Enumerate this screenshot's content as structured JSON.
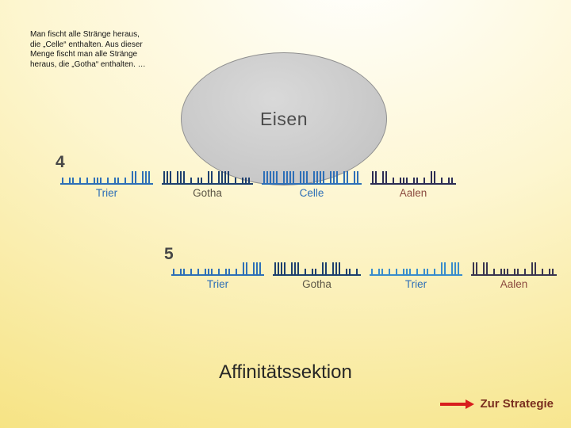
{
  "note": {
    "lines": [
      "Man fischt alle Stränge heraus,",
      "die „Celle“ enthalten. Aus dieser",
      "Menge fischt man alle Stränge",
      "heraus, die „Gotha“ enthalten.  …"
    ]
  },
  "bubble": {
    "label": "Eisen"
  },
  "rows": [
    {
      "number": "4",
      "groups": [
        {
          "label": "Trier",
          "label_color": "#2e6fb7",
          "bar_color": "#2e6fb7",
          "pattern": "1 11 1 1 111 1 11 1 33 333"
        },
        {
          "label": "Gotha",
          "label_color": "#5b5545",
          "bar_color": "#1d3f6e",
          "pattern": "333 333 1 11 33 3333 1 111"
        },
        {
          "label": "Celle",
          "label_color": "#2e6fb7",
          "bar_color": "#2e6fb7",
          "pattern": "33333 3333 333 3333 333 33 33"
        },
        {
          "label": "Aalen",
          "label_color": "#8b4a3f",
          "bar_color": "#2c2c54",
          "pattern": "33 33 1 111 11 1 33 1 11"
        }
      ]
    },
    {
      "number": "5",
      "groups": [
        {
          "label": "Trier",
          "label_color": "#2e6fb7",
          "bar_color": "#2e6fb7",
          "pattern": "1 11 1 1 111 1 11 1 33 333"
        },
        {
          "label": "Gotha",
          "label_color": "#5b5545",
          "bar_color": "#1d3f6e",
          "pattern": "3333 333 1 11 33 333 11 1"
        },
        {
          "label": "Trier",
          "label_color": "#2e6fb7",
          "bar_color": "#3a8ccc",
          "pattern": "1 11 1 1 111 1 11 1 33 333"
        },
        {
          "label": "Aalen",
          "label_color": "#8b4a3f",
          "bar_color": "#3a3550",
          "pattern": "33 33 1 111 11 1 33 1 11"
        }
      ]
    }
  ],
  "footer": {
    "title": "Affinitätssektion"
  },
  "strategy": {
    "label": "Zur Strategie",
    "arrow_color": "#d81e1e",
    "label_color": "#7a2f1f"
  }
}
